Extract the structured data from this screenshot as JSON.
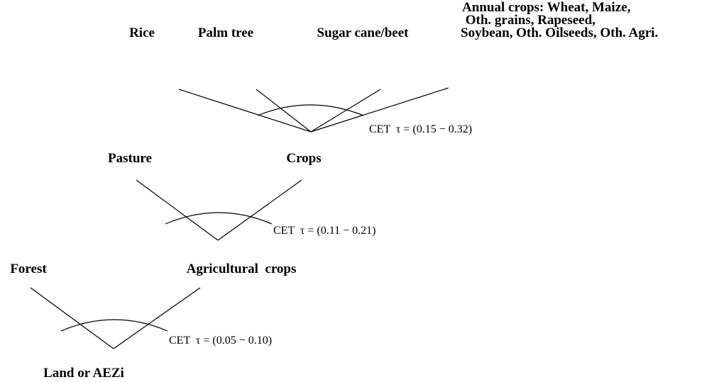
{
  "levels": [
    {
      "children": [
        {
          "lines": [
            "Rice"
          ]
        },
        {
          "lines": [
            "Palm tree"
          ]
        },
        {
          "lines": [
            "Sugar cane/beet"
          ]
        },
        {
          "lines": [
            "Annual crops: Wheat, Maize,",
            " Oth. grains, Rapeseed,",
            "Soybean, Oth. Oilseeds, Oth. Agri."
          ]
        }
      ],
      "elasticity": "CET  τ = (0.15 − 0.32)"
    },
    {
      "children": [
        {
          "lines": [
            "Pasture"
          ]
        },
        {
          "lines": [
            "Crops"
          ]
        }
      ],
      "elasticity": "CET  τ = (0.11 − 0.21)"
    },
    {
      "children": [
        {
          "lines": [
            "Forest"
          ]
        },
        {
          "lines": [
            "Agricultural  crops"
          ]
        }
      ],
      "elasticity": "CET  τ = (0.05 − 0.10)"
    }
  ],
  "root": "Land or AEZi"
}
